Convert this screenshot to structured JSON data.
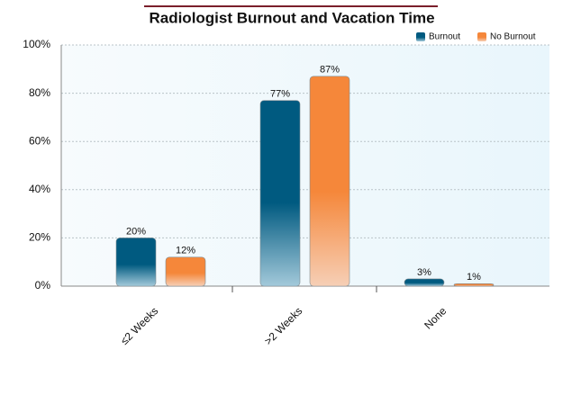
{
  "chart_data": {
    "type": "bar",
    "title": "Radiologist Burnout and Vacation Time",
    "categories": [
      "≤2 Weeks",
      ">2 Weeks",
      "None"
    ],
    "series": [
      {
        "name": "Burnout",
        "color": "#005a80",
        "values": [
          20,
          77,
          3
        ],
        "value_labels": [
          "20%",
          "77%",
          "3%"
        ]
      },
      {
        "name": "No Burnout",
        "color": "#f5873a",
        "values": [
          12,
          87,
          1
        ],
        "value_labels": [
          "12%",
          "87%",
          "1%"
        ]
      }
    ],
    "ylim": [
      0,
      100
    ],
    "yticks": [
      {
        "value": 0,
        "label": "0%"
      },
      {
        "value": 20,
        "label": "20%"
      },
      {
        "value": 40,
        "label": "40%"
      },
      {
        "value": 60,
        "label": "60%"
      },
      {
        "value": 80,
        "label": "80%"
      },
      {
        "value": 100,
        "label": "100%"
      }
    ],
    "grid": true,
    "legend": "top-right"
  }
}
